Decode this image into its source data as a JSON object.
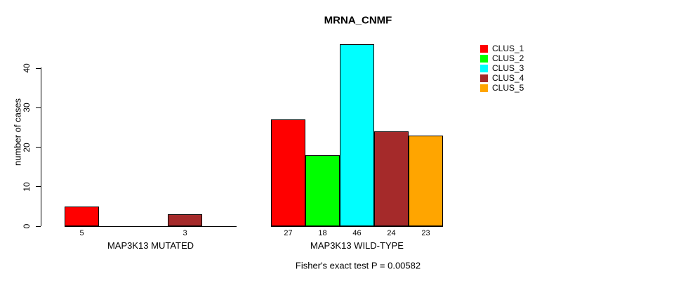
{
  "chart_data": {
    "type": "bar",
    "title": "MRNA_CNMF",
    "ylabel": "number of cases",
    "xlabel": "",
    "ylim": [
      0,
      46
    ],
    "yticks": [
      0,
      10,
      20,
      30,
      40
    ],
    "grid": false,
    "legend_position": "top-right",
    "legend": [
      {
        "name": "CLUS_1",
        "color": "#FF0000"
      },
      {
        "name": "CLUS_2",
        "color": "#00FF00"
      },
      {
        "name": "CLUS_3",
        "color": "#00FFFF"
      },
      {
        "name": "CLUS_4",
        "color": "#A52A2A"
      },
      {
        "name": "CLUS_5",
        "color": "#FFA500"
      }
    ],
    "categories": [
      "CLUS_1",
      "CLUS_2",
      "CLUS_3",
      "CLUS_4",
      "CLUS_5"
    ],
    "groups": [
      {
        "label": "MAP3K13 MUTATED",
        "values": [
          5,
          0,
          0,
          3,
          0
        ],
        "value_labels": [
          "5",
          "",
          "",
          "3",
          ""
        ]
      },
      {
        "label": "MAP3K13 WILD-TYPE",
        "values": [
          27,
          18,
          46,
          24,
          23
        ],
        "value_labels": [
          "27",
          "18",
          "46",
          "24",
          "23"
        ]
      }
    ],
    "annotation": "Fisher's exact test P = 0.00582"
  },
  "colors": {
    "background": "#FFFFFF",
    "axis": "#000000",
    "bar_border": "#000000",
    "text": "#000000"
  }
}
